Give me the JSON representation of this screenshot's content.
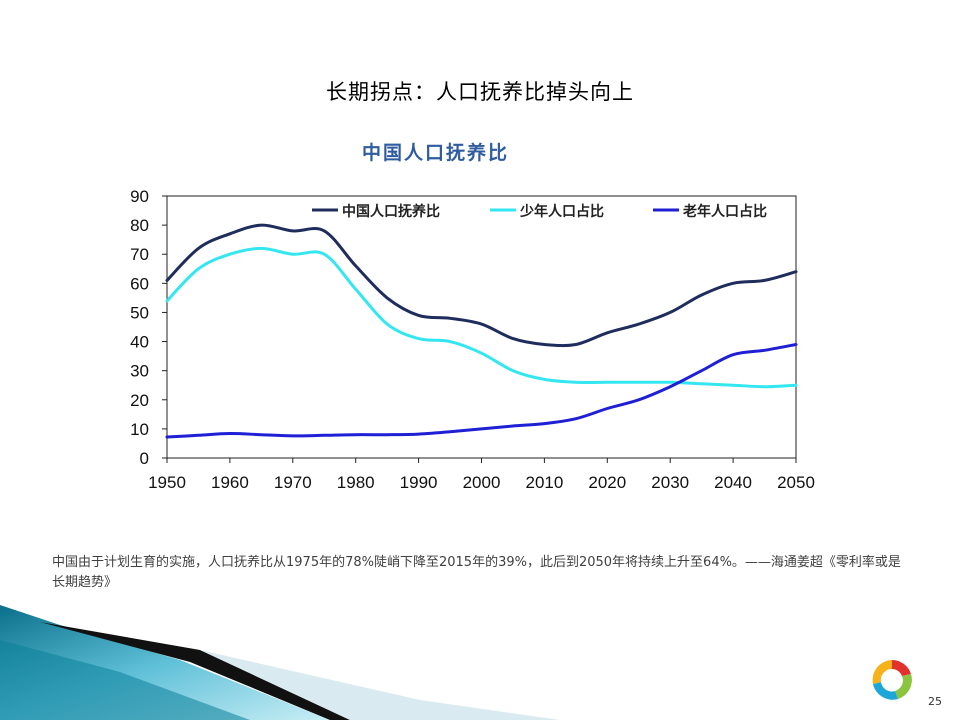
{
  "slide": {
    "title": "长期拐点：人口抚养比掉头向上",
    "caption": "中国由于计划生育的实施，人口抚养比从1975年的78%陡峭下降至2015年的39%，此后到2050年将持续上升至64%。——海通姜超《零利率或是长期趋势》",
    "page_number": "25"
  },
  "chart_data": {
    "type": "line",
    "title": "中国人口抚养比",
    "xlabel": "",
    "ylabel": "",
    "xlim": [
      1950,
      2050
    ],
    "ylim": [
      0,
      90
    ],
    "x_ticks": [
      "1950",
      "1960",
      "1970",
      "1980",
      "1990",
      "2000",
      "2010",
      "2020",
      "2030",
      "2040",
      "2050"
    ],
    "y_ticks": [
      "0",
      "10",
      "20",
      "30",
      "40",
      "50",
      "60",
      "70",
      "80",
      "90"
    ],
    "grid": false,
    "legend_position": "top-right",
    "x": [
      1950,
      1955,
      1960,
      1965,
      1970,
      1975,
      1980,
      1985,
      1990,
      1995,
      2000,
      2005,
      2010,
      2015,
      2020,
      2025,
      2030,
      2035,
      2040,
      2045,
      2050
    ],
    "series": [
      {
        "name": "中国人口抚养比",
        "color": "#1f2d5c",
        "values": [
          61,
          72,
          77,
          80,
          78,
          78,
          66,
          55,
          49,
          48,
          46,
          41,
          39,
          39,
          43,
          46,
          50,
          56,
          60,
          61,
          64
        ]
      },
      {
        "name": "少年人口占比",
        "color": "#33e6f0",
        "values": [
          54,
          65,
          70,
          72,
          70,
          70,
          58,
          46,
          41,
          40,
          36,
          30,
          27,
          26,
          26,
          26,
          26,
          25.5,
          25,
          24.5,
          25
        ]
      },
      {
        "name": "老年人口占比",
        "color": "#1f1fd6",
        "values": [
          7.2,
          7.8,
          8.4,
          8,
          7.6,
          7.8,
          8,
          8,
          8.2,
          9,
          10,
          11,
          11.8,
          13.5,
          17,
          20,
          24.5,
          30,
          35.5,
          37,
          39
        ]
      }
    ]
  }
}
